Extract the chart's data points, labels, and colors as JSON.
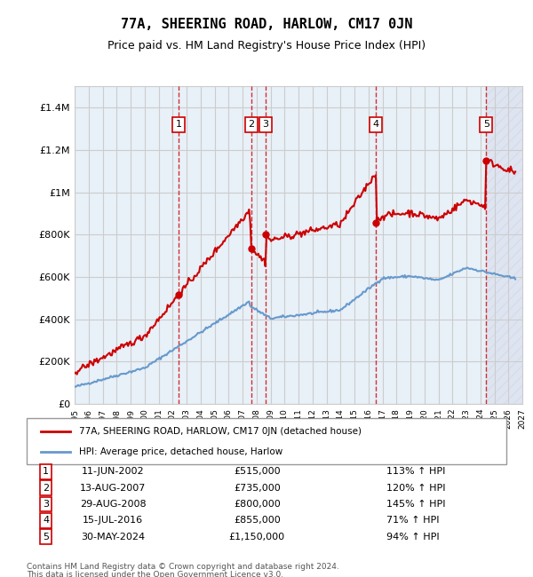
{
  "title": "77A, SHEERING ROAD, HARLOW, CM17 0JN",
  "subtitle": "Price paid vs. HM Land Registry's House Price Index (HPI)",
  "legend_line1": "77A, SHEERING ROAD, HARLOW, CM17 0JN (detached house)",
  "legend_line2": "HPI: Average price, detached house, Harlow",
  "transactions": [
    {
      "num": 1,
      "date": "11-JUN-2002",
      "price": 515000,
      "pct": "113%",
      "year": 2002.44
    },
    {
      "num": 2,
      "date": "13-AUG-2007",
      "price": 735000,
      "pct": "120%",
      "year": 2007.62
    },
    {
      "num": 3,
      "date": "29-AUG-2008",
      "price": 800000,
      "pct": "145%",
      "year": 2008.65
    },
    {
      "num": 4,
      "date": "15-JUL-2016",
      "price": 855000,
      "pct": "71%",
      "year": 2016.54
    },
    {
      "num": 5,
      "date": "30-MAY-2024",
      "price": 1150000,
      "pct": "94%",
      "year": 2024.41
    }
  ],
  "xmin": 1995,
  "xmax": 2027,
  "ymin": 0,
  "ymax": 1500000,
  "yticks": [
    0,
    200000,
    400000,
    600000,
    800000,
    1000000,
    1200000,
    1400000
  ],
  "ytick_labels": [
    "£0",
    "£200K",
    "£400K",
    "£600K",
    "£800K",
    "£1M",
    "£1.2M",
    "£1.4M"
  ],
  "background_color": "#ffffff",
  "grid_color": "#cccccc",
  "property_line_color": "#cc0000",
  "hpi_line_color": "#6699cc",
  "dashed_line_color": "#cc0000",
  "hatch_region_start": 2024.41,
  "footer_line1": "Contains HM Land Registry data © Crown copyright and database right 2024.",
  "footer_line2": "This data is licensed under the Open Government Licence v3.0."
}
